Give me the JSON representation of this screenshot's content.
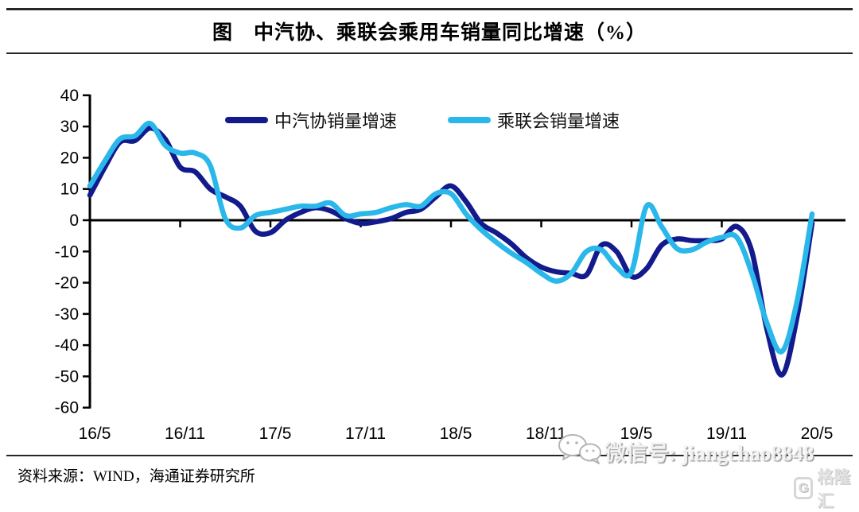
{
  "title": "图　中汽协、乘联会乘用车销量同比增速（%）",
  "source": "资料来源：WIND，海通证券研究所",
  "watermark": {
    "wechat_label": "微信号: jiangchao8848",
    "wechat_icon": "wechat-bubbles",
    "logo_letter": "G",
    "logo_text": "格隆汇"
  },
  "colors": {
    "caam": "#131a8c",
    "cpca": "#2ab7ea",
    "axis": "#000000"
  },
  "legend": {
    "caam_label": "中汽协销量增速",
    "cpca_label": "乘联会销量增速"
  },
  "chart_data": {
    "type": "line",
    "title": "中汽协、乘联会乘用车销量同比增速（%）",
    "xlabel": "",
    "ylabel": "",
    "ylim": [
      -60,
      40
    ],
    "grid": false,
    "legend_position": "top-center",
    "yticks": [
      40,
      30,
      20,
      10,
      0,
      -10,
      -20,
      -30,
      -40,
      -50,
      -60
    ],
    "xticks": [
      "16/5",
      "16/11",
      "17/5",
      "17/11",
      "18/5",
      "18/11",
      "19/5",
      "19/11",
      "20/5"
    ],
    "x": [
      "16/5",
      "16/6",
      "16/7",
      "16/8",
      "16/9",
      "16/10",
      "16/11",
      "16/12",
      "17/1",
      "17/2",
      "17/3",
      "17/4",
      "17/5",
      "17/6",
      "17/7",
      "17/8",
      "17/9",
      "17/10",
      "17/11",
      "17/12",
      "18/1",
      "18/2",
      "18/3",
      "18/4",
      "18/5",
      "18/6",
      "18/7",
      "18/8",
      "18/9",
      "18/10",
      "18/11",
      "18/12",
      "19/1",
      "19/2",
      "19/3",
      "19/4",
      "19/5",
      "19/6",
      "19/7",
      "19/8",
      "19/9",
      "19/10",
      "19/11",
      "19/12",
      "20/1",
      "20/2",
      "20/3",
      "20/4",
      "20/5"
    ],
    "series": [
      {
        "name": "中汽协销量增速",
        "color": "#131a8c",
        "values": [
          8,
          17,
          25,
          25.5,
          29.5,
          26,
          17,
          15.5,
          10,
          7.5,
          4.5,
          -3.5,
          -4,
          0,
          2.5,
          4,
          3,
          0.5,
          -1,
          -0.5,
          0.5,
          2.5,
          3.5,
          7.5,
          11,
          6,
          -1,
          -4,
          -7.5,
          -12,
          -15,
          -16.5,
          -17,
          -17.5,
          -8,
          -10,
          -18,
          -15.5,
          -8,
          -6,
          -6.5,
          -6.5,
          -6,
          -2,
          -10,
          -35,
          -49.5,
          -31,
          -1
        ]
      },
      {
        "name": "乘联会销量增速",
        "color": "#2ab7ea",
        "values": [
          11,
          19,
          26,
          27,
          31,
          24,
          21.5,
          21.5,
          17.5,
          0.5,
          -2.5,
          1.5,
          2.5,
          3.5,
          4.5,
          4.5,
          5.5,
          1.5,
          2,
          2.5,
          4,
          5,
          4.5,
          8.5,
          8.5,
          2,
          -3,
          -7,
          -10.5,
          -13.5,
          -17,
          -19.5,
          -17,
          -10,
          -9.5,
          -15,
          -16.5,
          4.5,
          -2,
          -9,
          -9.5,
          -7,
          -5.5,
          -5.5,
          -17,
          -33,
          -42,
          -26,
          2
        ]
      }
    ]
  }
}
